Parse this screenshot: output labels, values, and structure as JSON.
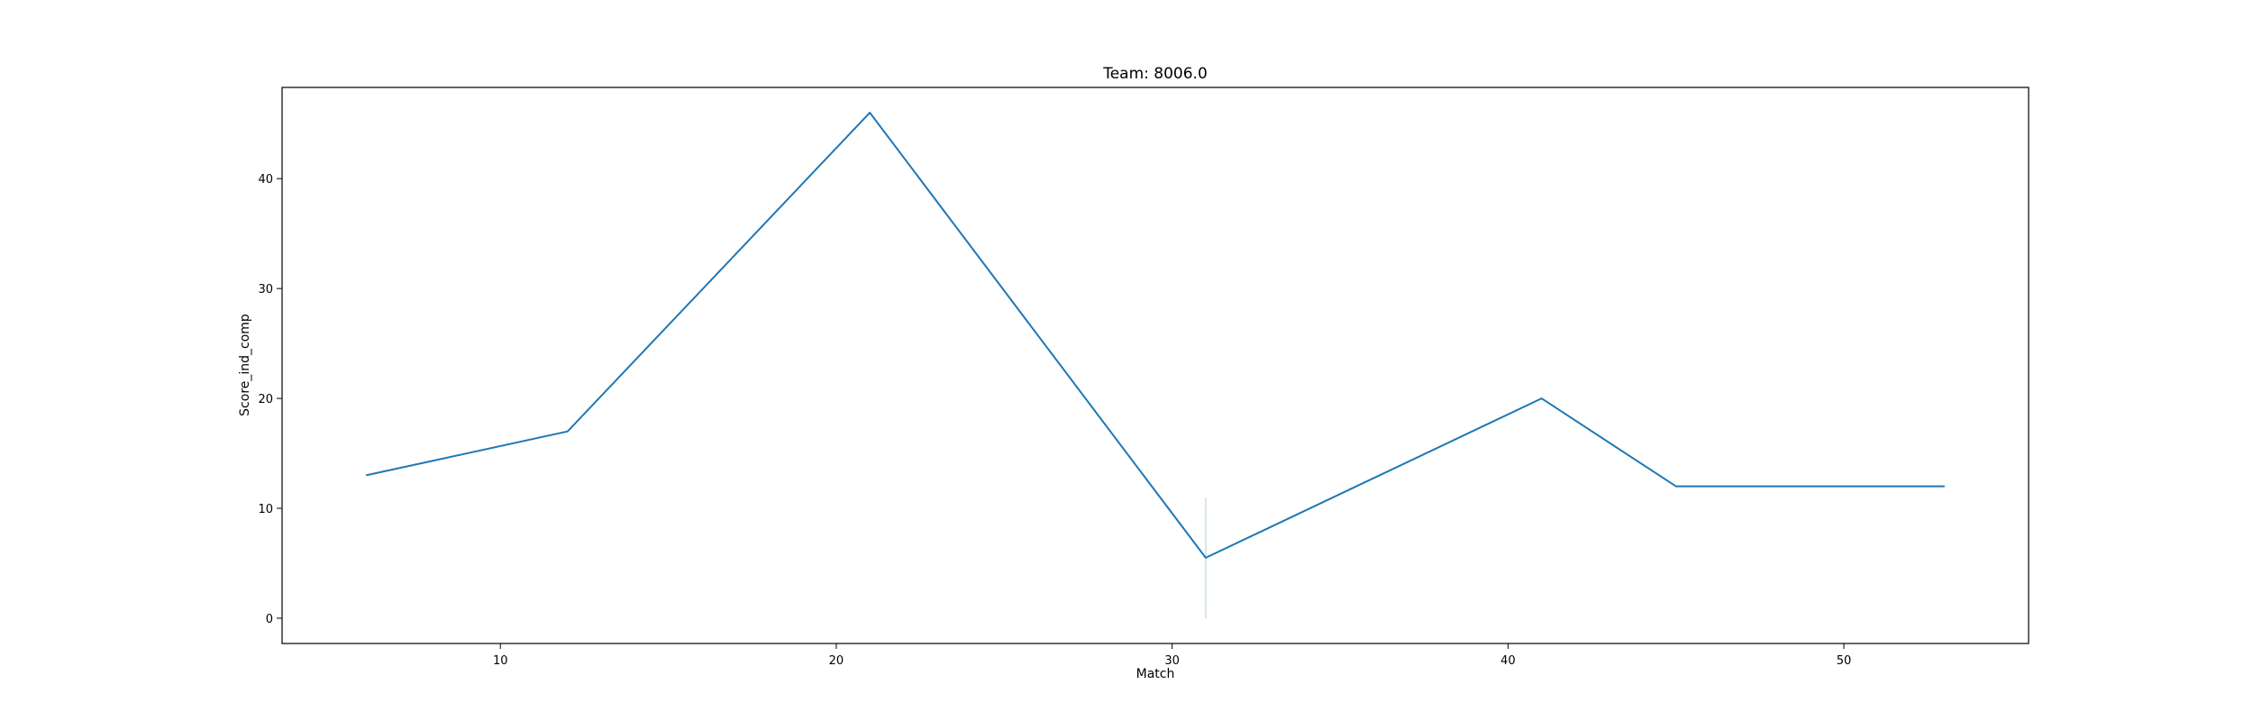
{
  "chart_data": {
    "type": "line",
    "title": "Team: 8006.0",
    "xlabel": "Match",
    "ylabel": "Score_ind_comp",
    "xlim": [
      3.5,
      55.5
    ],
    "ylim": [
      -2.3,
      48.3
    ],
    "xticks": [
      10,
      20,
      30,
      40,
      50
    ],
    "yticks": [
      0,
      10,
      20,
      30,
      40
    ],
    "grid": false,
    "series": [
      {
        "color": "#1f77b4",
        "x": [
          6,
          12,
          21,
          31,
          41,
          45,
          53
        ],
        "y": [
          13,
          17,
          46,
          5.5,
          20,
          12,
          12
        ]
      }
    ],
    "error_bands": [
      {
        "x": 31,
        "low": 0,
        "high": 11,
        "color": "#1f77b4"
      }
    ]
  }
}
